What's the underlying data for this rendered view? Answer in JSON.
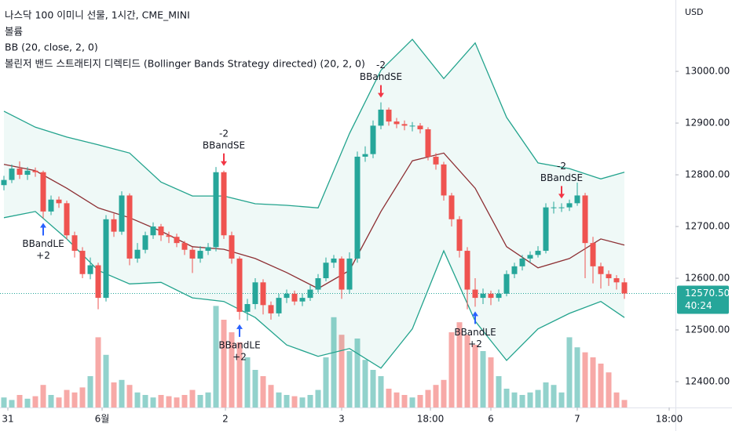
{
  "chart_data": {
    "type": "candlestick",
    "title": "나스닥 100 이미니 선물, 1시간, CME_MINI",
    "indicator_labels": [
      "볼륨",
      "BB (20, close, 2, 0)",
      "볼린저 밴드 스트래티지 디렉티드 (Bollinger Bands Strategy directed) (20, 2, 0)"
    ],
    "currency": "USD",
    "up_color": "#26a69a",
    "down_color": "#ef5350",
    "xlim": [
      -0.5,
      85.5
    ],
    "xticks": [
      {
        "value": 0.5,
        "label": "31"
      },
      {
        "value": 12.5,
        "label": "6월"
      },
      {
        "value": 28.2,
        "label": "2"
      },
      {
        "value": 43,
        "label": "3"
      },
      {
        "value": 54.3,
        "label": "18:00"
      },
      {
        "value": 62,
        "label": "6"
      },
      {
        "value": 73,
        "label": "7"
      },
      {
        "value": 84.7,
        "label": "18:00"
      }
    ],
    "ylim": [
      12350,
      13138
    ],
    "yticks": [
      {
        "value": 12400,
        "label": "12400.00"
      },
      {
        "value": 12500,
        "label": "12500.00"
      },
      {
        "value": 12600,
        "label": "12600.00"
      },
      {
        "value": 12700,
        "label": "12700.00"
      },
      {
        "value": 12800,
        "label": "12800.00"
      },
      {
        "value": 12900,
        "label": "12900.00"
      },
      {
        "value": 13000,
        "label": "13000.00"
      }
    ],
    "open": [
      12780,
      12790,
      12812,
      12800,
      12808,
      12805,
      12729,
      12752,
      12745,
      12683,
      12653,
      12608,
      12625,
      12562,
      12714,
      12690,
      12760,
      12638,
      12655,
      12683,
      12700,
      12683,
      12680,
      12668,
      12655,
      12638,
      12653,
      12660,
      12805,
      12683,
      12638,
      12535,
      12550,
      12592,
      12548,
      12532,
      12562,
      12570,
      12555,
      12562,
      12578,
      12600,
      12630,
      12638,
      12578,
      12638,
      12835,
      12840,
      12895,
      12926,
      12903,
      12898,
      12895,
      12895,
      12888,
      12835,
      12820,
      12760,
      12714,
      12653,
      12578,
      12562,
      12570,
      12562,
      12570,
      12608,
      12623,
      12638,
      12645,
      12653,
      12737,
      12737,
      12737,
      12745,
      12760,
      12668,
      12623,
      12608,
      12600,
      12592
    ],
    "high": [
      12798,
      12820,
      12826,
      12815,
      12814,
      12808,
      12760,
      12758,
      12750,
      12690,
      12660,
      12640,
      12630,
      12722,
      12725,
      12768,
      12764,
      12668,
      12690,
      12708,
      12705,
      12690,
      12686,
      12672,
      12660,
      12662,
      12668,
      12815,
      12808,
      12690,
      12642,
      12560,
      12600,
      12598,
      12555,
      12570,
      12578,
      12576,
      12570,
      12586,
      12608,
      12640,
      12645,
      12642,
      12650,
      12845,
      12855,
      12905,
      12940,
      12930,
      12910,
      12905,
      12902,
      12900,
      12892,
      12842,
      12825,
      12765,
      12720,
      12660,
      12600,
      12580,
      12576,
      12578,
      12615,
      12630,
      12645,
      12652,
      12662,
      12745,
      12748,
      12745,
      12752,
      12785,
      12765,
      12680,
      12630,
      12615,
      12606,
      12600
    ],
    "low": [
      12770,
      12784,
      12792,
      12790,
      12796,
      12716,
      12722,
      12736,
      12675,
      12640,
      12600,
      12598,
      12540,
      12555,
      12680,
      12684,
      12625,
      12630,
      12648,
      12676,
      12672,
      12668,
      12660,
      12645,
      12610,
      12630,
      12645,
      12652,
      12676,
      12628,
      12520,
      12518,
      12540,
      12530,
      12520,
      12526,
      12552,
      12548,
      12546,
      12556,
      12572,
      12594,
      12620,
      12560,
      12570,
      12630,
      12825,
      12832,
      12888,
      12895,
      12890,
      12886,
      12884,
      12880,
      12828,
      12810,
      12750,
      12700,
      12640,
      12540,
      12545,
      12550,
      12548,
      12555,
      12565,
      12600,
      12615,
      12630,
      12640,
      12648,
      12725,
      12728,
      12730,
      12740,
      12600,
      12590,
      12580,
      12585,
      12578,
      12560
    ],
    "close": [
      12790,
      12812,
      12800,
      12808,
      12805,
      12729,
      12752,
      12745,
      12683,
      12653,
      12608,
      12625,
      12562,
      12714,
      12690,
      12760,
      12638,
      12655,
      12683,
      12700,
      12683,
      12680,
      12668,
      12655,
      12638,
      12653,
      12660,
      12805,
      12683,
      12638,
      12535,
      12550,
      12592,
      12548,
      12532,
      12562,
      12570,
      12555,
      12562,
      12578,
      12600,
      12630,
      12638,
      12578,
      12638,
      12835,
      12840,
      12895,
      12926,
      12903,
      12898,
      12895,
      12895,
      12888,
      12835,
      12820,
      12760,
      12714,
      12653,
      12578,
      12562,
      12570,
      12562,
      12570,
      12608,
      12623,
      12638,
      12645,
      12653,
      12737,
      12737,
      12737,
      12745,
      12760,
      12668,
      12623,
      12608,
      12600,
      12592,
      12570.5
    ],
    "volume": [
      8,
      6,
      10,
      7,
      9,
      18,
      10,
      8,
      14,
      12,
      16,
      25,
      56,
      42,
      20,
      22,
      18,
      12,
      10,
      8,
      10,
      9,
      8,
      10,
      14,
      10,
      12,
      81,
      70,
      60,
      52,
      40,
      30,
      25,
      18,
      12,
      10,
      9,
      8,
      10,
      14,
      40,
      72,
      58,
      45,
      55,
      38,
      30,
      25,
      15,
      12,
      10,
      8,
      10,
      14,
      18,
      22,
      60,
      68,
      58,
      50,
      45,
      40,
      25,
      15,
      12,
      10,
      12,
      14,
      20,
      18,
      12,
      56,
      48,
      44,
      40,
      35,
      28,
      12,
      6
    ],
    "volume_ylim": [
      0,
      100
    ],
    "bands": {
      "color": "#22a38d",
      "middle_color": "#8d2f33",
      "x": [
        0,
        4,
        8,
        12,
        16,
        20,
        24,
        28,
        32,
        36,
        40,
        44,
        48,
        52,
        56,
        60,
        64,
        68,
        72,
        76,
        79
      ],
      "upper": [
        12923,
        12892,
        12873,
        12858,
        12842,
        12786,
        12759,
        12759,
        12744,
        12741,
        12736,
        12880,
        13002,
        13062,
        12986,
        13055,
        12911,
        12823,
        12812,
        12792,
        12805
      ],
      "middle": [
        12820,
        12808,
        12774,
        12736,
        12717,
        12691,
        12661,
        12656,
        12638,
        12611,
        12580,
        12615,
        12729,
        12827,
        12842,
        12774,
        12661,
        12620,
        12638,
        12676,
        12664
      ],
      "lower": [
        12717,
        12729,
        12676,
        12615,
        12589,
        12592,
        12562,
        12555,
        12524,
        12471,
        12449,
        12464,
        12426,
        12502,
        12653,
        12517,
        12441,
        12502,
        12532,
        12555,
        12524
      ]
    },
    "signals": [
      null,
      null,
      null,
      null,
      null,
      {
        "label": "BBandLE",
        "qty": "+2",
        "direction": "up"
      },
      null,
      null,
      null,
      null,
      null,
      null,
      null,
      null,
      null,
      null,
      null,
      null,
      null,
      null,
      null,
      null,
      null,
      null,
      null,
      null,
      null,
      null,
      {
        "label": "BBandSE",
        "qty": "-2",
        "direction": "down"
      },
      null,
      {
        "label": "BBandLE",
        "qty": "+2",
        "direction": "up"
      },
      null,
      null,
      null,
      null,
      null,
      null,
      null,
      null,
      null,
      null,
      null,
      null,
      null,
      null,
      null,
      null,
      null,
      {
        "label": "BBandSE",
        "qty": "-2",
        "direction": "down"
      },
      null,
      null,
      null,
      null,
      null,
      null,
      null,
      null,
      null,
      null,
      null,
      {
        "label": "BBandLE",
        "qty": "+2",
        "direction": "up"
      },
      null,
      null,
      null,
      null,
      null,
      null,
      null,
      null,
      null,
      null,
      {
        "label": "BBandSE",
        "qty": "-2",
        "direction": "down"
      },
      null,
      null,
      null,
      null,
      null,
      null,
      null,
      null,
      null
    ],
    "last_price": {
      "value": 12570.5,
      "label": "12570.50"
    },
    "countdown": "40:24"
  }
}
